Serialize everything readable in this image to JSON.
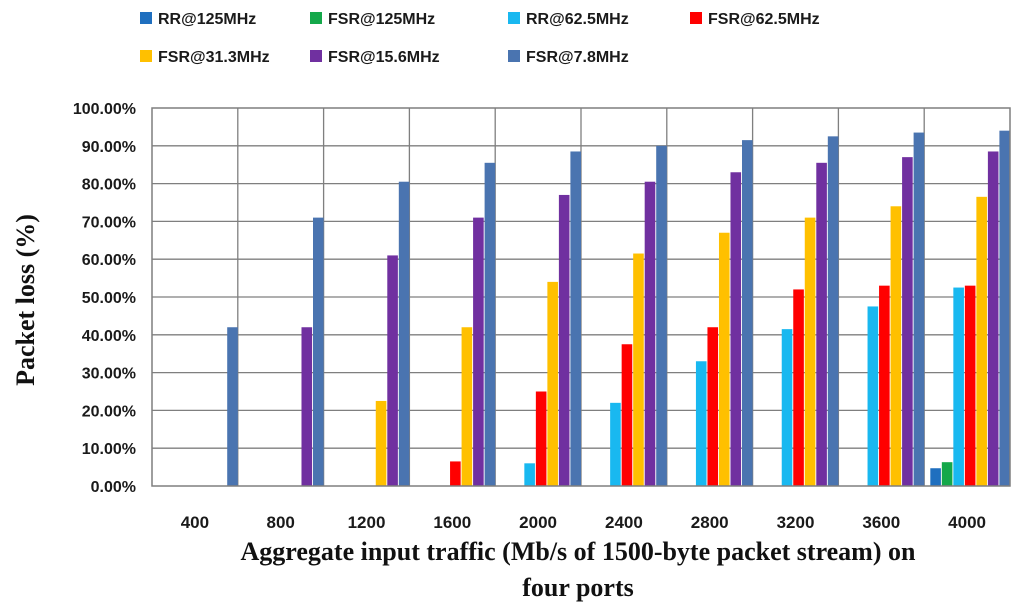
{
  "chart_data": {
    "type": "bar",
    "title": "",
    "xlabel_line1": "Aggregate input traffic (Mb/s of 1500-byte packet stream) on",
    "xlabel_line2": "four ports",
    "ylabel": "Packet loss (%)",
    "ylim": [
      0,
      100
    ],
    "yticks": [
      "0.00%",
      "10.00%",
      "20.00%",
      "30.00%",
      "40.00%",
      "50.00%",
      "60.00%",
      "70.00%",
      "80.00%",
      "90.00%",
      "100.00%"
    ],
    "categories": [
      "400",
      "800",
      "1200",
      "1600",
      "2000",
      "2400",
      "2800",
      "3200",
      "3600",
      "4000"
    ],
    "grid": true,
    "legend_position": "top",
    "series": [
      {
        "name": "RR@125MHz",
        "color": "#1f6fbf",
        "values": [
          0,
          0,
          0,
          0,
          0,
          0,
          0,
          0,
          0,
          4.7
        ]
      },
      {
        "name": "FSR@125MHz",
        "color": "#14a84a",
        "values": [
          0,
          0,
          0,
          0,
          0,
          0,
          0,
          0,
          0,
          6.3
        ]
      },
      {
        "name": "RR@62.5MHz",
        "color": "#19b8f0",
        "values": [
          0,
          0,
          0,
          0,
          6.0,
          22.0,
          33.0,
          41.5,
          47.5,
          52.5
        ]
      },
      {
        "name": "FSR@62.5MHz",
        "color": "#ff0000",
        "values": [
          0,
          0,
          0,
          6.5,
          25.0,
          37.5,
          42.0,
          52.0,
          53.0,
          53.0
        ]
      },
      {
        "name": "FSR@31.3MHz",
        "color": "#ffc000",
        "values": [
          0,
          0,
          22.5,
          42.0,
          54.0,
          61.5,
          67.0,
          71.0,
          74.0,
          76.5
        ]
      },
      {
        "name": "FSR@15.6MHz",
        "color": "#7030a0",
        "values": [
          0,
          42.0,
          61.0,
          71.0,
          77.0,
          80.5,
          83.0,
          85.5,
          87.0,
          88.5
        ]
      },
      {
        "name": "FSR@7.8MHz",
        "color": "#4a74b0",
        "values": [
          42.0,
          71.0,
          80.5,
          85.5,
          88.5,
          90.0,
          91.5,
          92.5,
          93.5,
          94.0
        ]
      }
    ]
  }
}
